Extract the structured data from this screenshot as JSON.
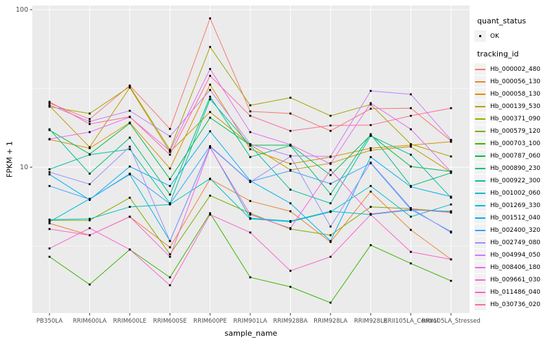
{
  "chart_data": {
    "type": "line",
    "title": "",
    "xlabel": "sample_name",
    "ylabel": "FPKM + 1",
    "y_scale": "log10",
    "ylim": [
      1.15,
      110
    ],
    "y_major_ticks": [
      {
        "label": "100",
        "value": 100
      },
      {
        "label": "10",
        "value": 10
      }
    ],
    "y_minor_gridlines": [
      31.623,
      3.1623
    ],
    "grid": "on",
    "legend_position": "right",
    "categories": [
      "PB350LA",
      "RRIM600LA",
      "RRIM600LE",
      "RRIM600SE",
      "RRIM600PE",
      "RRIM901LA",
      "RRIM928BA",
      "RRIM928LA",
      "RRIM928LE",
      "RRII105LA_Control",
      "RRII105LA_Stressed"
    ],
    "legend": {
      "quant_status_title": "quant_status",
      "quant_status_items": [
        {
          "label": "OK",
          "marker": "point"
        }
      ],
      "tracking_title": "tracking_id"
    },
    "style": {
      "panel_bg": "#EBEBEB",
      "grid_color": "#FFFFFF",
      "point_color": "#000000",
      "tick_color": "#333333",
      "tick_label_color": "#4D4D4D",
      "legend_key_bg": "#F2F2F2"
    },
    "series": [
      {
        "name": "Hb_000002_480",
        "color": "#F8766D",
        "values": [
          25.5,
          20.2,
          33.0,
          17.5,
          88.0,
          22.6,
          21.9,
          17.0,
          23.5,
          23.7,
          14.7
        ]
      },
      {
        "name": "Hb_000056_130",
        "color": "#EA8331",
        "values": [
          4.4,
          3.7,
          4.85,
          3.1,
          8.4,
          6.1,
          5.25,
          3.35,
          7.0,
          4.0,
          2.6
        ]
      },
      {
        "name": "Hb_000058_130",
        "color": "#D89000",
        "values": [
          15.0,
          13.2,
          19.2,
          9.8,
          33.4,
          13.0,
          10.5,
          11.6,
          13.2,
          13.8,
          14.5
        ]
      },
      {
        "name": "Hb_000139_530",
        "color": "#C09B00",
        "values": [
          24.5,
          13.4,
          32.0,
          12.5,
          22.4,
          13.9,
          9.6,
          10.6,
          12.8,
          13.5,
          9.3
        ]
      },
      {
        "name": "Hb_000371_090",
        "color": "#A3A500",
        "values": [
          24.2,
          21.9,
          32.5,
          12.9,
          58.0,
          24.7,
          27.6,
          21.2,
          25.0,
          14.0,
          11.7
        ]
      },
      {
        "name": "Hb_000579_120",
        "color": "#7CAE00",
        "values": [
          4.6,
          4.6,
          6.4,
          2.8,
          6.6,
          5.1,
          4.05,
          3.7,
          5.6,
          5.45,
          5.2
        ]
      },
      {
        "name": "Hb_000703_100",
        "color": "#39B600",
        "values": [
          2.7,
          1.8,
          3.0,
          2.0,
          5.1,
          2.0,
          1.74,
          1.38,
          3.2,
          2.45,
          1.9
        ]
      },
      {
        "name": "Hb_000787_060",
        "color": "#00BB4E",
        "values": [
          17.2,
          12.1,
          19.0,
          8.4,
          20.6,
          13.8,
          13.8,
          8.9,
          16.0,
          10.1,
          9.4
        ]
      },
      {
        "name": "Hb_000890_230",
        "color": "#00BF7D",
        "values": [
          17.4,
          9.1,
          15.4,
          6.7,
          28.0,
          11.6,
          13.7,
          6.75,
          16.2,
          7.6,
          9.2
        ]
      },
      {
        "name": "Hb_000922_300",
        "color": "#00C1A3",
        "values": [
          9.7,
          12.0,
          13.0,
          5.9,
          27.0,
          13.7,
          7.2,
          5.9,
          15.8,
          12.0,
          6.4
        ]
      },
      {
        "name": "Hb_001002_060",
        "color": "#00BFC4",
        "values": [
          4.65,
          4.7,
          5.6,
          5.8,
          8.45,
          4.7,
          4.5,
          5.2,
          7.6,
          4.85,
          5.8
        ]
      },
      {
        "name": "Hb_001269_330",
        "color": "#00BBDA",
        "values": [
          4.5,
          6.3,
          9.0,
          3.4,
          13.4,
          4.75,
          4.55,
          5.25,
          5.0,
          5.35,
          5.25
        ]
      },
      {
        "name": "Hb_001512_040",
        "color": "#00B0F6",
        "values": [
          9.0,
          6.2,
          10.1,
          7.6,
          16.9,
          8.2,
          5.9,
          3.4,
          11.6,
          7.5,
          6.5
        ]
      },
      {
        "name": "Hb_002400_320",
        "color": "#35A2FF",
        "values": [
          7.6,
          6.25,
          9.1,
          5.85,
          13.6,
          8.1,
          9.5,
          7.85,
          10.6,
          5.4,
          3.9
        ]
      },
      {
        "name": "Hb_002749_080",
        "color": "#9590FF",
        "values": [
          9.3,
          7.8,
          13.5,
          3.4,
          13.5,
          8.05,
          11.7,
          4.2,
          10.7,
          5.5,
          3.85
        ]
      },
      {
        "name": "Hb_004994_050",
        "color": "#C77CFF",
        "values": [
          24.8,
          19.5,
          22.8,
          15.7,
          30.9,
          14.0,
          11.8,
          11.7,
          30.5,
          29.0,
          14.9
        ]
      },
      {
        "name": "Hb_008406_180",
        "color": "#E76BF3",
        "values": [
          15.1,
          16.7,
          20.8,
          12.7,
          42.0,
          16.7,
          13.9,
          10.5,
          25.5,
          17.4,
          9.35
        ]
      },
      {
        "name": "Hb_009661_030",
        "color": "#FA62DB",
        "values": [
          4.05,
          3.7,
          4.85,
          2.7,
          13.3,
          5.0,
          4.1,
          9.6,
          5.05,
          5.4,
          5.15
        ]
      },
      {
        "name": "Hb_011486_040",
        "color": "#FF61CC",
        "values": [
          3.05,
          4.1,
          3.0,
          1.78,
          5.0,
          3.85,
          2.2,
          2.7,
          5.0,
          2.9,
          2.6
        ]
      },
      {
        "name": "Hb_030736_020",
        "color": "#FF6A98",
        "values": [
          26.0,
          18.8,
          20.9,
          12.0,
          38.0,
          21.2,
          17.0,
          18.4,
          18.5,
          21.2,
          23.7
        ]
      }
    ]
  }
}
